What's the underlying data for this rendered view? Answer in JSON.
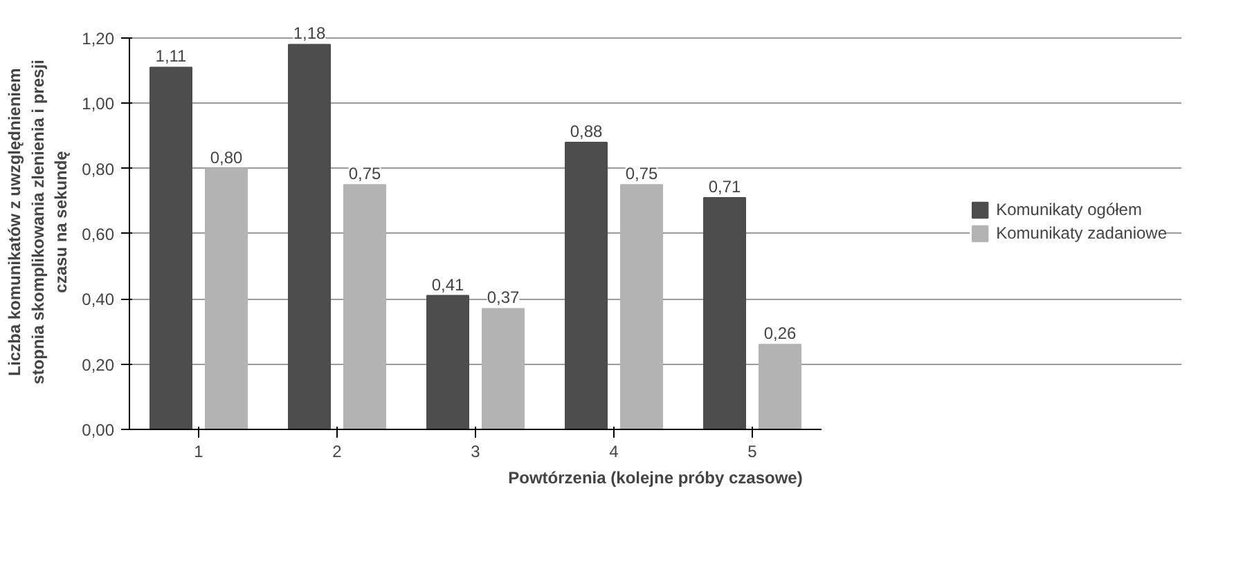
{
  "chart_data": {
    "type": "bar",
    "xlabel": "Powtórzenia (kolejne próby czasowe)",
    "ylabel": "Liczba komunikatów z uwzględnieniem\nstopnia skomplikowania zlenienia i presji\nczasu na sekundę",
    "categories": [
      "1",
      "2",
      "3",
      "4",
      "5"
    ],
    "series": [
      {
        "name": "Komunikaty ogółem",
        "color": "#4d4d4d",
        "values": [
          1.11,
          1.18,
          0.41,
          0.88,
          0.71
        ],
        "value_labels": [
          "1,11",
          "1,18",
          "0,41",
          "0,88",
          "0,71"
        ]
      },
      {
        "name": "Komunikaty zadaniowe",
        "color": "#b3b3b3",
        "values": [
          0.8,
          0.75,
          0.37,
          0.75,
          0.26
        ],
        "value_labels": [
          "0,80",
          "0,75",
          "0,37",
          "0,75",
          "0,26"
        ]
      }
    ],
    "ylim": [
      0,
      1.2
    ],
    "yticks": [
      {
        "value": 0,
        "label": "0,00"
      },
      {
        "value": 0.2,
        "label": "0,20"
      },
      {
        "value": 0.4,
        "label": "0,40"
      },
      {
        "value": 0.6,
        "label": "0,60"
      },
      {
        "value": 0.8,
        "label": "0,80"
      },
      {
        "value": 1.0,
        "label": "1,00"
      },
      {
        "value": 1.2,
        "label": "1,20"
      }
    ],
    "grid": "y",
    "legend": "right"
  }
}
